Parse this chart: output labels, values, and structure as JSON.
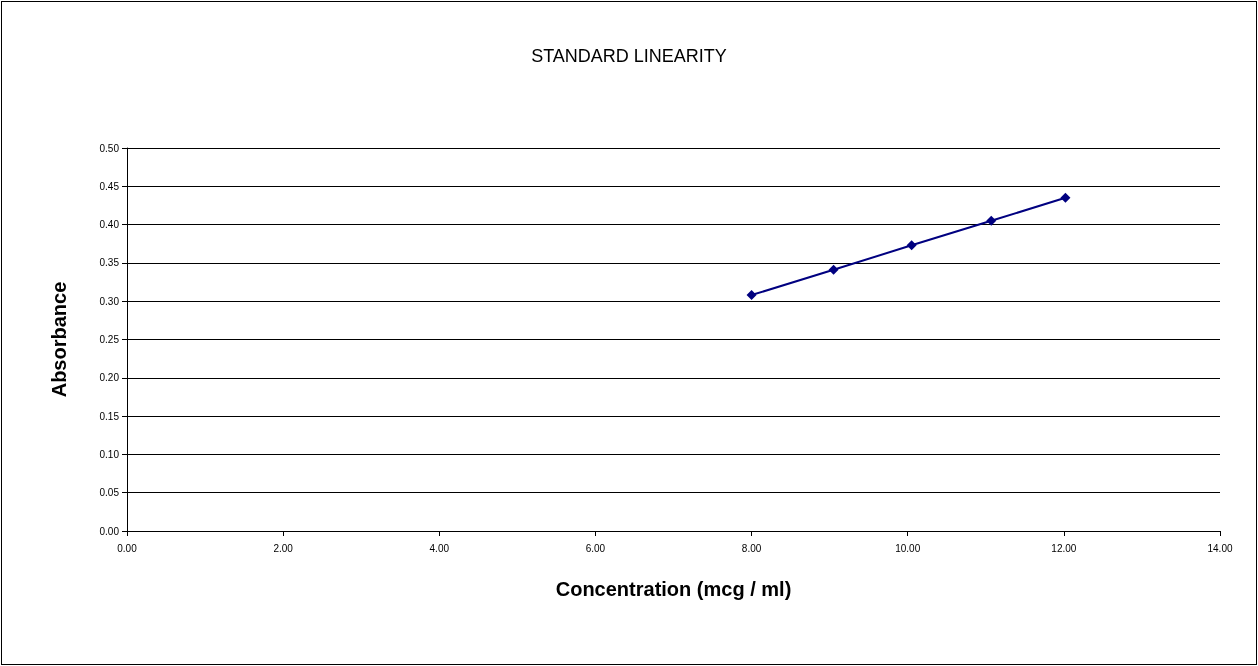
{
  "chart_data": {
    "type": "line",
    "title": "STANDARD LINEARITY",
    "xlabel": "Concentration (mcg / ml)",
    "ylabel": "Absorbance",
    "x": [
      8,
      9.05,
      10.05,
      11.07,
      12.02
    ],
    "series": [
      {
        "color": "#000080",
        "values": [
          0.308,
          0.341,
          0.373,
          0.405,
          0.435
        ]
      }
    ],
    "xlim": [
      0,
      14
    ],
    "xticks": [
      {
        "value": 0,
        "label": "0.00"
      },
      {
        "value": 2,
        "label": "2.00"
      },
      {
        "value": 4,
        "label": "4.00"
      },
      {
        "value": 6,
        "label": "6.00"
      },
      {
        "value": 8,
        "label": "8.00"
      },
      {
        "value": 10,
        "label": "10.00"
      },
      {
        "value": 12,
        "label": "12.00"
      },
      {
        "value": 14,
        "label": "14.00"
      }
    ],
    "ylim": [
      0,
      0.5
    ],
    "yticks": [
      {
        "value": 0,
        "label": "0.00"
      },
      {
        "value": 0.05,
        "label": "0.05"
      },
      {
        "value": 0.1,
        "label": "0.10"
      },
      {
        "value": 0.15,
        "label": "0.15"
      },
      {
        "value": 0.2,
        "label": "0.20"
      },
      {
        "value": 0.25,
        "label": "0.25"
      },
      {
        "value": 0.3,
        "label": "0.30"
      },
      {
        "value": 0.35,
        "label": "0.35"
      },
      {
        "value": 0.4,
        "label": "0.40"
      },
      {
        "value": 0.45,
        "label": "0.45"
      },
      {
        "value": 0.5,
        "label": "0.50"
      }
    ],
    "grid": "y",
    "marker": "diamond",
    "line_style": "solid"
  }
}
